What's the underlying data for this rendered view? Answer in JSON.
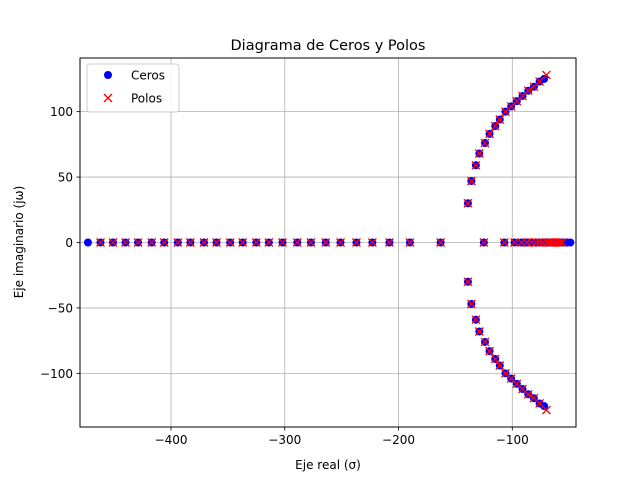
{
  "chart_data": {
    "type": "scatter",
    "title": "Diagrama de Ceros y Polos",
    "xlabel": "Eje real (σ)",
    "ylabel": "Eje imaginario (jω)",
    "xlim": [
      -480,
      -44
    ],
    "ylim": [
      -141,
      141
    ],
    "xticks": [
      -400,
      -300,
      -200,
      -100
    ],
    "yticks": [
      -100,
      -50,
      0,
      50,
      100
    ],
    "grid": true,
    "legend_position": "top-left",
    "series": [
      {
        "name": "Ceros",
        "marker": "circle",
        "color": "#0000ff",
        "points": [
          [
            -473,
            0
          ],
          [
            -462,
            0
          ],
          [
            -451,
            0
          ],
          [
            -440,
            0
          ],
          [
            -429,
            0
          ],
          [
            -417,
            0
          ],
          [
            -406,
            0
          ],
          [
            -394,
            0
          ],
          [
            -383,
            0
          ],
          [
            -371,
            0
          ],
          [
            -360,
            0
          ],
          [
            -348,
            0
          ],
          [
            -337,
            0
          ],
          [
            -325,
            0
          ],
          [
            -314,
            0
          ],
          [
            -302,
            0
          ],
          [
            -289,
            0
          ],
          [
            -277,
            0
          ],
          [
            -264,
            0
          ],
          [
            -251,
            0
          ],
          [
            -237,
            0
          ],
          [
            -223,
            0
          ],
          [
            -208,
            0
          ],
          [
            -190,
            0
          ],
          [
            -163,
            0
          ],
          [
            -125,
            0
          ],
          [
            -107,
            0
          ],
          [
            -98,
            0
          ],
          [
            -92,
            0
          ],
          [
            -87,
            0
          ],
          [
            -83,
            0
          ],
          [
            -79,
            0
          ],
          [
            -76,
            0
          ],
          [
            -73,
            0
          ],
          [
            -70,
            0
          ],
          [
            -67,
            0
          ],
          [
            -64,
            0
          ],
          [
            -61,
            0
          ],
          [
            -58,
            0
          ],
          [
            -55,
            0
          ],
          [
            -52,
            0
          ],
          [
            -49,
            0
          ],
          [
            -139,
            30
          ],
          [
            -136,
            47
          ],
          [
            -132,
            59
          ],
          [
            -129,
            68
          ],
          [
            -124,
            76
          ],
          [
            -120,
            83
          ],
          [
            -115,
            89
          ],
          [
            -111,
            94
          ],
          [
            -106,
            100
          ],
          [
            -101,
            104
          ],
          [
            -96,
            108
          ],
          [
            -91,
            112
          ],
          [
            -86,
            116
          ],
          [
            -81,
            119
          ],
          [
            -76,
            123
          ],
          [
            -72,
            125
          ],
          [
            -139,
            -30
          ],
          [
            -136,
            -47
          ],
          [
            -132,
            -59
          ],
          [
            -129,
            -68
          ],
          [
            -124,
            -76
          ],
          [
            -120,
            -83
          ],
          [
            -115,
            -89
          ],
          [
            -111,
            -94
          ],
          [
            -106,
            -100
          ],
          [
            -101,
            -104
          ],
          [
            -96,
            -108
          ],
          [
            -91,
            -112
          ],
          [
            -86,
            -116
          ],
          [
            -81,
            -119
          ],
          [
            -76,
            -123
          ],
          [
            -72,
            -125
          ]
        ]
      },
      {
        "name": "Polos",
        "marker": "x",
        "color": "#ff0000",
        "points": [
          [
            -462,
            0
          ],
          [
            -451,
            0
          ],
          [
            -440,
            0
          ],
          [
            -429,
            0
          ],
          [
            -417,
            0
          ],
          [
            -406,
            0
          ],
          [
            -394,
            0
          ],
          [
            -383,
            0
          ],
          [
            -371,
            0
          ],
          [
            -360,
            0
          ],
          [
            -348,
            0
          ],
          [
            -337,
            0
          ],
          [
            -325,
            0
          ],
          [
            -314,
            0
          ],
          [
            -302,
            0
          ],
          [
            -289,
            0
          ],
          [
            -277,
            0
          ],
          [
            -264,
            0
          ],
          [
            -251,
            0
          ],
          [
            -237,
            0
          ],
          [
            -223,
            0
          ],
          [
            -208,
            0
          ],
          [
            -190,
            0
          ],
          [
            -163,
            0
          ],
          [
            -125,
            0
          ],
          [
            -107,
            0
          ],
          [
            -98,
            0
          ],
          [
            -92,
            0
          ],
          [
            -87,
            0
          ],
          [
            -83,
            0
          ],
          [
            -79,
            0
          ],
          [
            -76,
            0
          ],
          [
            -73,
            0
          ],
          [
            -70,
            0
          ],
          [
            -68,
            0
          ],
          [
            -66,
            0
          ],
          [
            -64,
            0
          ],
          [
            -62,
            0
          ],
          [
            -60,
            0
          ],
          [
            -58,
            0
          ],
          [
            -56,
            0
          ],
          [
            -139,
            30
          ],
          [
            -136,
            47
          ],
          [
            -132,
            59
          ],
          [
            -129,
            68
          ],
          [
            -124,
            76
          ],
          [
            -120,
            83
          ],
          [
            -115,
            89
          ],
          [
            -111,
            94
          ],
          [
            -106,
            100
          ],
          [
            -101,
            104
          ],
          [
            -96,
            108
          ],
          [
            -91,
            112
          ],
          [
            -86,
            116
          ],
          [
            -81,
            119
          ],
          [
            -76,
            123
          ],
          [
            -70,
            128
          ],
          [
            -139,
            -30
          ],
          [
            -136,
            -47
          ],
          [
            -132,
            -59
          ],
          [
            -129,
            -68
          ],
          [
            -124,
            -76
          ],
          [
            -120,
            -83
          ],
          [
            -115,
            -89
          ],
          [
            -111,
            -94
          ],
          [
            -106,
            -100
          ],
          [
            -101,
            -104
          ],
          [
            -96,
            -108
          ],
          [
            -91,
            -112
          ],
          [
            -86,
            -116
          ],
          [
            -81,
            -119
          ],
          [
            -76,
            -123
          ],
          [
            -70,
            -128
          ]
        ]
      }
    ]
  }
}
